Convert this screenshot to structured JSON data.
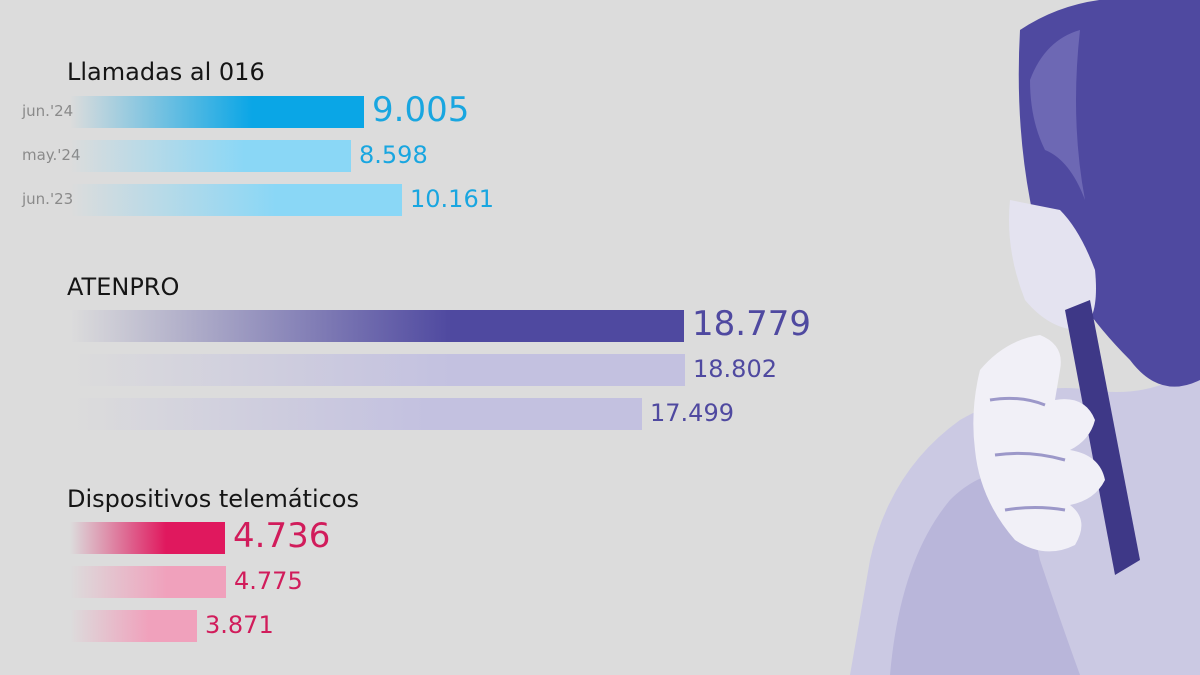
{
  "chart_data": [
    {
      "type": "bar",
      "title": "Llamadas al 016",
      "categories": [
        "jun.'24",
        "may.'24",
        "jun.'23"
      ],
      "values": [
        9005,
        8598,
        10161
      ],
      "value_labels": [
        "9.005",
        "8.598",
        "10.161"
      ],
      "xlim": [
        0,
        19000
      ],
      "color_main": "#0aa6e6",
      "color_light": "#8ad7f6",
      "label_color": "#19a6e0"
    },
    {
      "type": "bar",
      "title": "ATENPRO",
      "categories": [
        "jun.'24",
        "may.'24",
        "jun.'23"
      ],
      "values": [
        18779,
        18802,
        17499
      ],
      "value_labels": [
        "18.779",
        "18.802",
        "17.499"
      ],
      "xlim": [
        0,
        19000
      ],
      "color_main": "#4f49a0",
      "color_light": "#c3c1e0",
      "label_color": "#4f49a0"
    },
    {
      "type": "bar",
      "title": "Dispositivos telemáticos",
      "categories": [
        "jun.'24",
        "may.'24",
        "jun.'23"
      ],
      "values": [
        4736,
        4775,
        3871
      ],
      "value_labels": [
        "4.736",
        "4.775",
        "3.871"
      ],
      "xlim": [
        0,
        19000
      ],
      "color_main": "#e0185e",
      "color_light": "#f0a1bc",
      "label_color": "#d11c5b"
    }
  ],
  "legend": {
    "position": "left-of-bars"
  },
  "colors": {
    "background": "#dcdcdc",
    "photo_tint": "#5b56a8"
  },
  "image": {
    "subject": "woman-on-phone-icon"
  }
}
